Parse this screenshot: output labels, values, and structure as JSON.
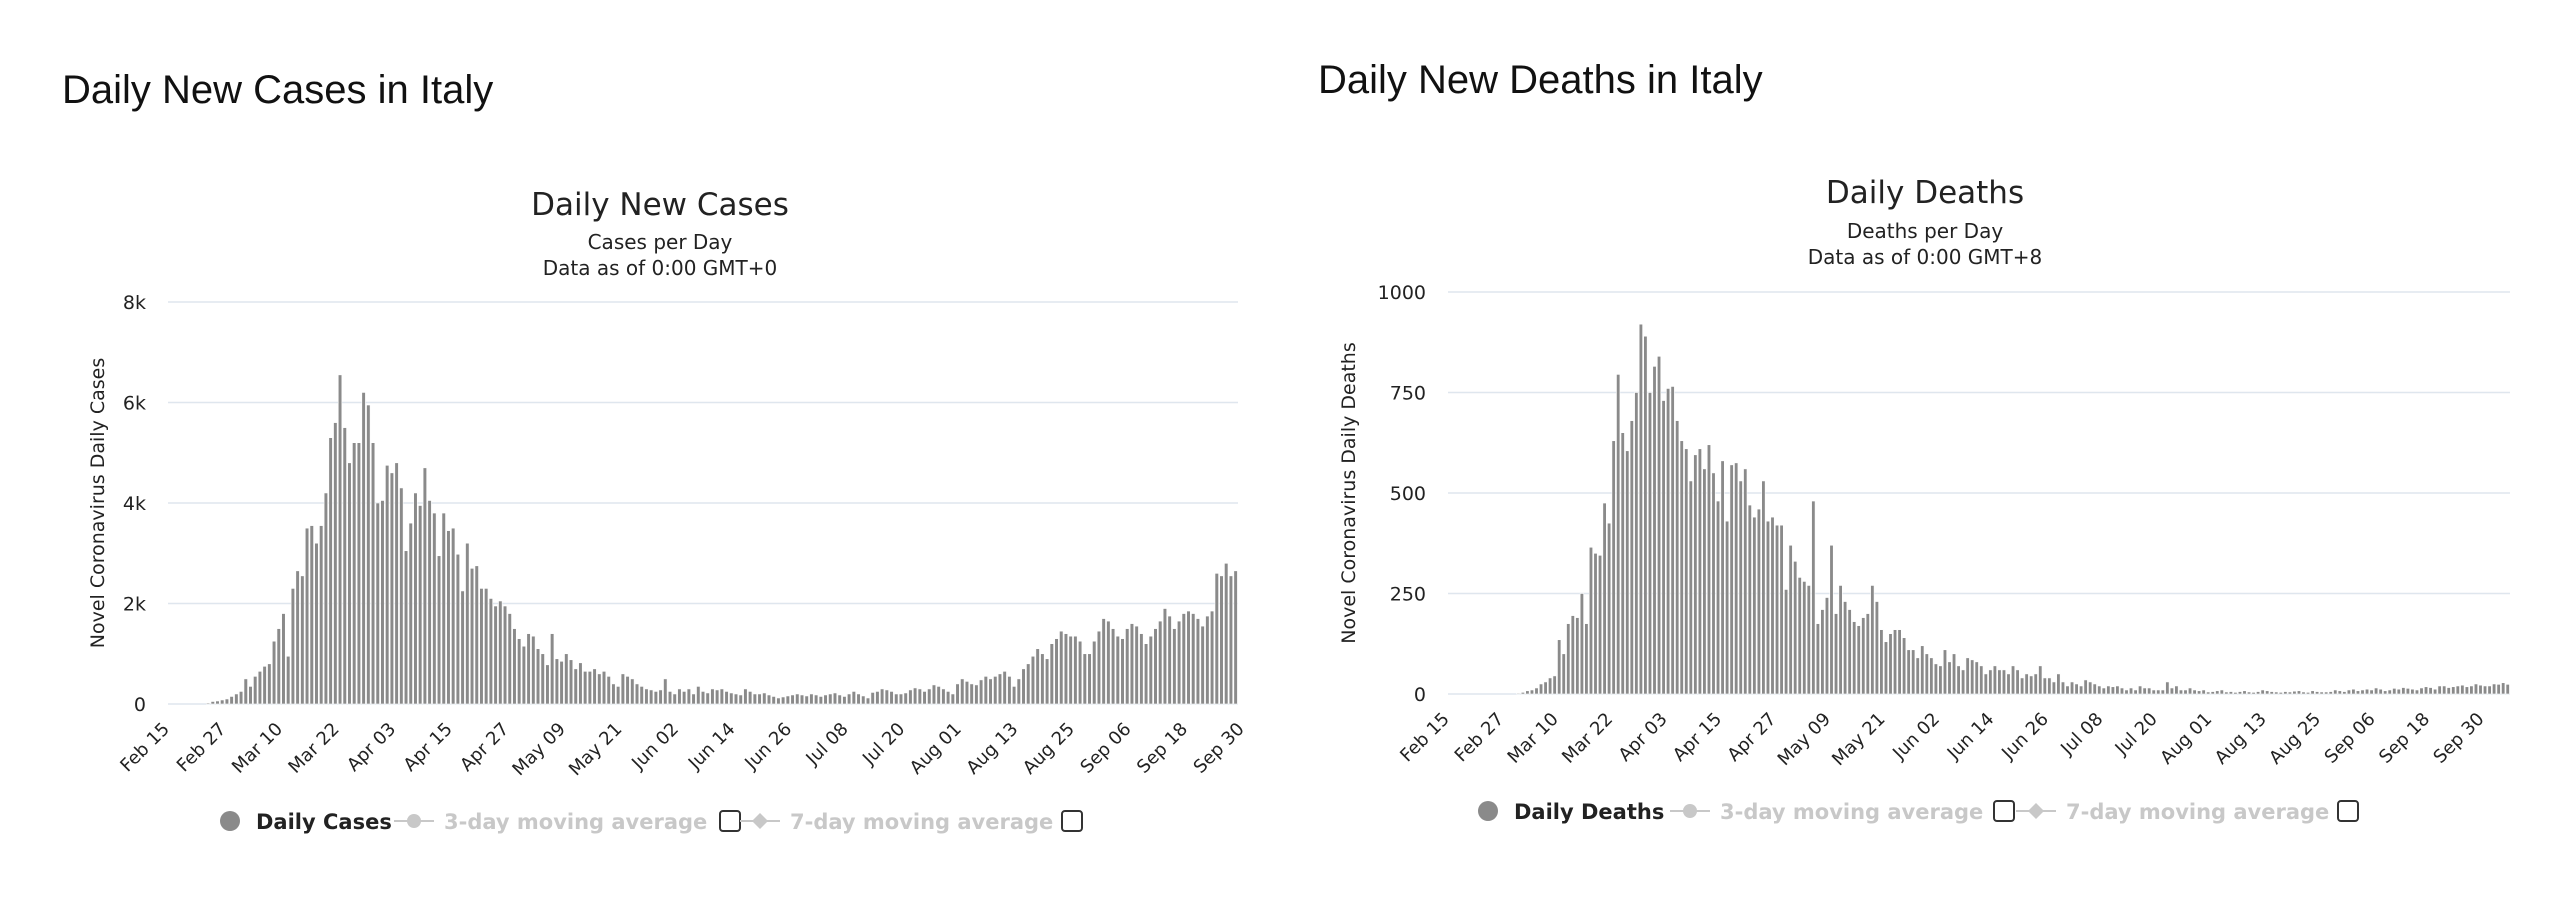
{
  "panels": [
    {
      "title": "Daily New Cases in Italy"
    },
    {
      "title": "Daily New Deaths in Italy"
    }
  ],
  "chart_data": [
    {
      "type": "bar",
      "title": "Daily New Cases",
      "subtitle": "Cases per Day",
      "subtitle2": "Data as of 0:00 GMT+0",
      "ylabel": "Novel Coronavirus Daily Cases",
      "ylim": [
        0,
        8000
      ],
      "yticks": [
        0,
        2000,
        4000,
        6000,
        8000
      ],
      "ytick_labels": [
        "0",
        "2k",
        "4k",
        "6k",
        "8k"
      ],
      "xticks": [
        "Feb 15",
        "Feb 27",
        "Mar 10",
        "Mar 22",
        "Apr 03",
        "Apr 15",
        "Apr 27",
        "May 09",
        "May 21",
        "Jun 02",
        "Jun 14",
        "Jun 26",
        "Jul 08",
        "Jul 20",
        "Aug 01",
        "Aug 13",
        "Aug 25",
        "Sep 06",
        "Sep 18",
        "Sep 30"
      ],
      "grid": true,
      "x_start": "Feb 15",
      "x_end": "Oct 05",
      "series": [
        {
          "name": "Daily Cases",
          "color": "#8a8a8a",
          "values": [
            0,
            0,
            0,
            0,
            0,
            0,
            0,
            0,
            20,
            50,
            60,
            80,
            100,
            150,
            200,
            250,
            500,
            350,
            550,
            650,
            750,
            800,
            1250,
            1500,
            1800,
            950,
            2300,
            2650,
            2550,
            3500,
            3550,
            3200,
            3550,
            4200,
            5300,
            5600,
            6550,
            5500,
            4800,
            5200,
            5200,
            6200,
            5950,
            5200,
            4000,
            4050,
            4750,
            4600,
            4800,
            4300,
            3050,
            3600,
            4200,
            3950,
            4700,
            4050,
            3800,
            2950,
            3800,
            3450,
            3500,
            2980,
            2250,
            3200,
            2700,
            2750,
            2300,
            2300,
            2100,
            1950,
            2050,
            1950,
            1800,
            1500,
            1300,
            1150,
            1400,
            1350,
            1100,
            1000,
            780,
            1400,
            900,
            850,
            1000,
            880,
            700,
            820,
            650,
            650,
            700,
            600,
            650,
            550,
            400,
            350,
            600,
            550,
            500,
            400,
            350,
            300,
            280,
            250,
            280,
            500,
            250,
            200,
            300,
            250,
            300,
            200,
            350,
            250,
            220,
            300,
            280,
            300,
            250,
            220,
            200,
            180,
            300,
            250,
            200,
            200,
            220,
            180,
            150,
            120,
            140,
            160,
            180,
            200,
            180,
            160,
            200,
            180,
            150,
            180,
            200,
            220,
            180,
            150,
            200,
            250,
            200,
            160,
            120,
            230,
            250,
            300,
            280,
            250,
            200,
            200,
            220,
            280,
            320,
            300,
            250,
            300,
            380,
            350,
            300,
            250,
            200,
            400,
            500,
            450,
            400,
            380,
            480,
            550,
            500,
            550,
            600,
            650,
            550,
            350,
            500,
            700,
            800,
            950,
            1100,
            1000,
            900,
            1200,
            1300,
            1450,
            1400,
            1350,
            1350,
            1250,
            1000,
            1000,
            1250,
            1450,
            1700,
            1650,
            1500,
            1350,
            1300,
            1500,
            1600,
            1550,
            1400,
            1200,
            1350,
            1500,
            1650,
            1900,
            1750,
            1500,
            1650,
            1800,
            1850,
            1800,
            1700,
            1550,
            1750,
            1850,
            2600,
            2550,
            2800,
            2550,
            2650
          ]
        },
        {
          "name": "3-day moving average",
          "color": "#c8c8c8"
        },
        {
          "name": "7-day moving average",
          "color": "#c8c8c8"
        }
      ]
    },
    {
      "type": "bar",
      "title": "Daily Deaths",
      "subtitle": "Deaths per Day",
      "subtitle2": "Data as of 0:00 GMT+8",
      "ylabel": "Novel Coronavirus Daily Deaths",
      "ylim": [
        0,
        1000
      ],
      "yticks": [
        0,
        250,
        500,
        750,
        1000
      ],
      "ytick_labels": [
        "0",
        "250",
        "500",
        "750",
        "1000"
      ],
      "xticks": [
        "Feb 15",
        "Feb 27",
        "Mar 10",
        "Mar 22",
        "Apr 03",
        "Apr 15",
        "Apr 27",
        "May 09",
        "May 21",
        "Jun 02",
        "Jun 14",
        "Jun 26",
        "Jul 08",
        "Jul 20",
        "Aug 01",
        "Aug 13",
        "Aug 25",
        "Sep 06",
        "Sep 18",
        "Sep 30"
      ],
      "grid": true,
      "x_start": "Feb 15",
      "x_end": "Oct 05",
      "series": [
        {
          "name": "Daily Deaths",
          "color": "#8a8a8a",
          "values": [
            0,
            0,
            0,
            0,
            0,
            0,
            0,
            0,
            0,
            0,
            0,
            0,
            0,
            0,
            0,
            2,
            4,
            8,
            10,
            15,
            25,
            30,
            40,
            45,
            135,
            100,
            175,
            195,
            190,
            250,
            175,
            365,
            350,
            345,
            475,
            425,
            630,
            795,
            650,
            605,
            680,
            750,
            920,
            890,
            750,
            815,
            840,
            730,
            760,
            765,
            680,
            630,
            610,
            530,
            595,
            610,
            560,
            620,
            550,
            480,
            580,
            430,
            570,
            575,
            530,
            560,
            470,
            440,
            460,
            530,
            430,
            440,
            420,
            420,
            260,
            370,
            330,
            290,
            280,
            270,
            480,
            175,
            210,
            240,
            370,
            200,
            270,
            230,
            210,
            180,
            170,
            190,
            200,
            270,
            230,
            160,
            130,
            150,
            160,
            160,
            140,
            110,
            110,
            90,
            120,
            100,
            90,
            75,
            70,
            110,
            80,
            100,
            70,
            60,
            90,
            85,
            80,
            70,
            50,
            60,
            70,
            60,
            60,
            50,
            70,
            60,
            40,
            50,
            45,
            50,
            70,
            40,
            40,
            30,
            50,
            30,
            20,
            30,
            25,
            20,
            35,
            30,
            25,
            20,
            15,
            20,
            18,
            20,
            15,
            10,
            15,
            10,
            20,
            15,
            15,
            10,
            10,
            10,
            30,
            15,
            20,
            10,
            10,
            15,
            10,
            8,
            10,
            5,
            6,
            8,
            10,
            5,
            6,
            4,
            6,
            8,
            5,
            4,
            6,
            10,
            8,
            6,
            5,
            4,
            6,
            5,
            7,
            8,
            5,
            4,
            8,
            6,
            5,
            5,
            6,
            10,
            8,
            6,
            10,
            12,
            8,
            10,
            12,
            10,
            15,
            12,
            8,
            10,
            14,
            12,
            16,
            14,
            12,
            10,
            15,
            18,
            16,
            12,
            20,
            20,
            16,
            18,
            20,
            22,
            18,
            20,
            25,
            22,
            20,
            20,
            25,
            24,
            28,
            24
          ]
        },
        {
          "name": "3-day moving average",
          "color": "#c8c8c8"
        },
        {
          "name": "7-day moving average",
          "color": "#c8c8c8"
        }
      ]
    }
  ]
}
